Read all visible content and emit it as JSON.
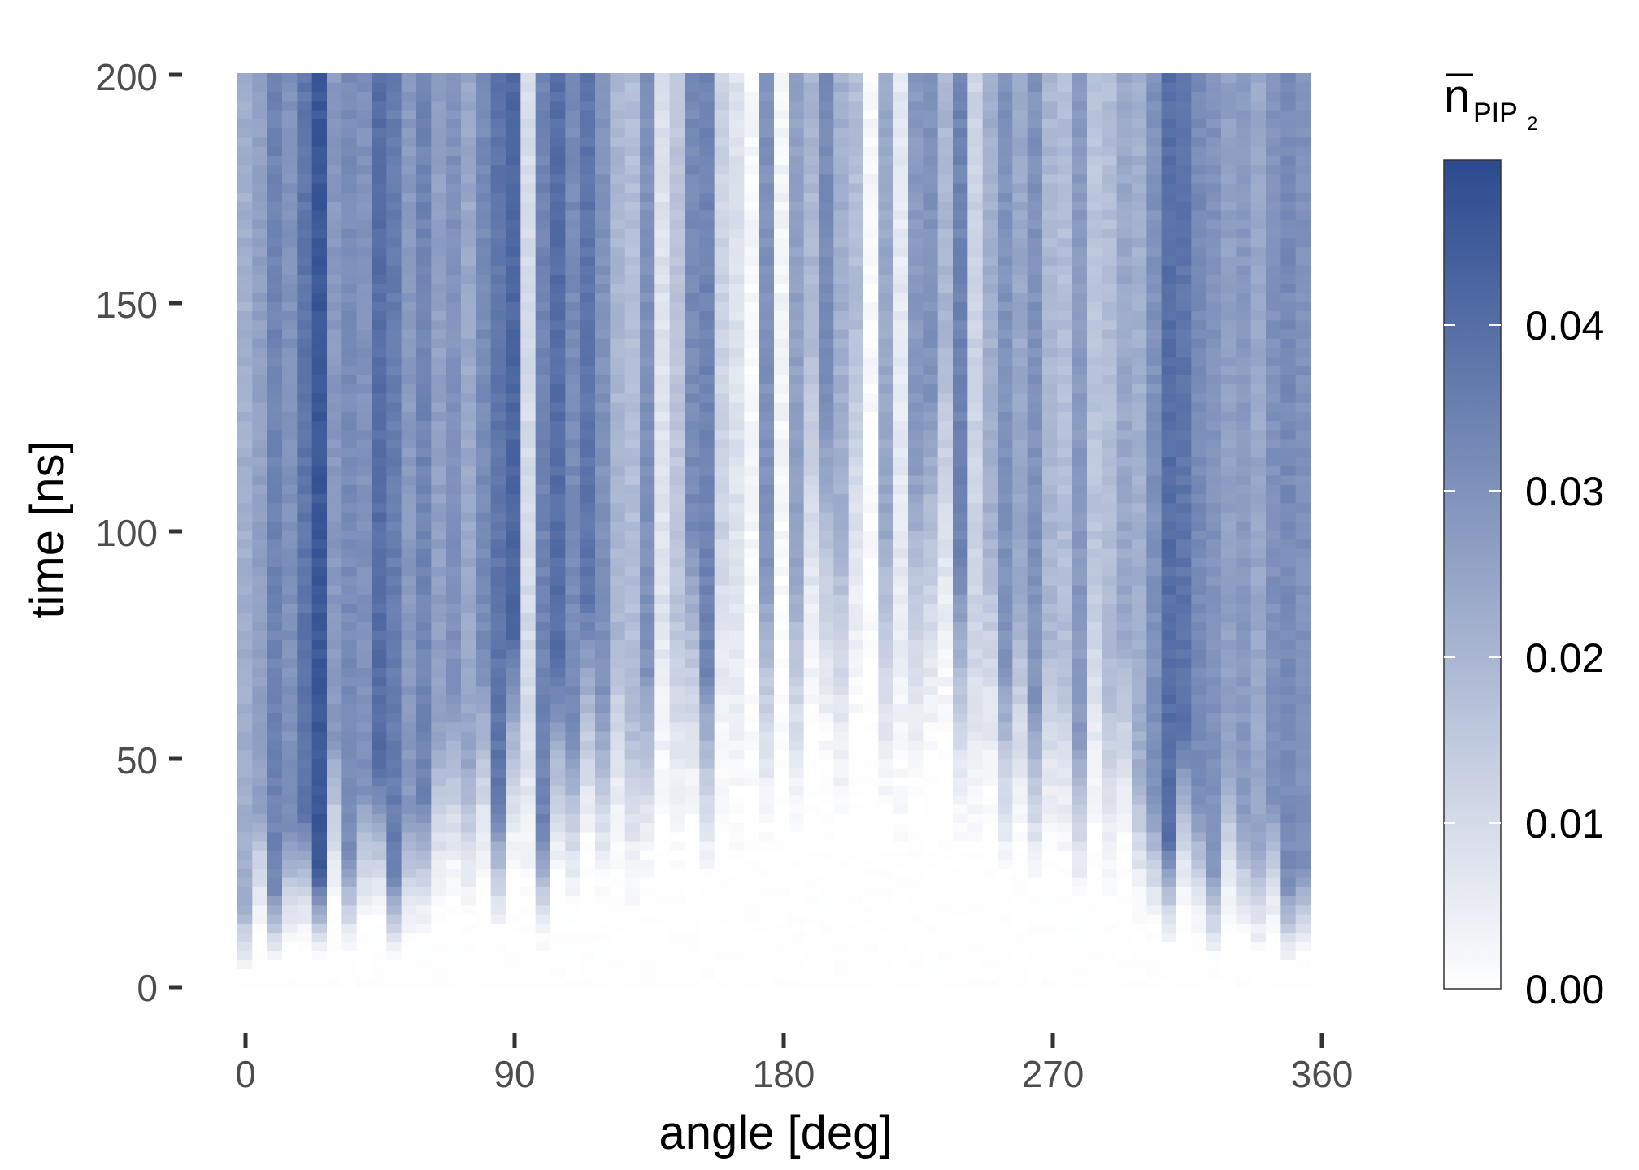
{
  "chart_data": {
    "type": "heatmap",
    "xlabel": "angle [deg]",
    "ylabel": "time [ns]",
    "xlim": [
      0,
      360
    ],
    "ylim": [
      0,
      200
    ],
    "x_ticks": [
      "0",
      "90",
      "180",
      "270",
      "360"
    ],
    "y_ticks": [
      "0",
      "50",
      "100",
      "150",
      "200"
    ],
    "grid": false,
    "colorbar": {
      "title_main": "n",
      "title_sub": "PIP",
      "title_subsub": "2",
      "overbar": true,
      "ticks": [
        "0.00",
        "0.01",
        "0.02",
        "0.03",
        "0.04"
      ],
      "range": [
        0,
        0.05
      ],
      "color_low": "#ffffff",
      "color_high": "#2b4a8f",
      "placement": "right"
    },
    "x_bins": {
      "start": 0,
      "end": 360,
      "count": 72
    },
    "y_bins": {
      "start": 0,
      "end": 200,
      "count": 100
    },
    "column_onset_ns": [
      5,
      20,
      8,
      15,
      18,
      10,
      30,
      12,
      22,
      25,
      10,
      18,
      20,
      30,
      35,
      25,
      40,
      20,
      45,
      30,
      15,
      40,
      30,
      50,
      35,
      45,
      30,
      40,
      50,
      45,
      60,
      40,
      60,
      50,
      65,
      55,
      80,
      55,
      90,
      80,
      60,
      90,
      100,
      60,
      50,
      70,
      80,
      90,
      55,
      45,
      60,
      40,
      50,
      35,
      45,
      40,
      30,
      55,
      35,
      45,
      25,
      20,
      15,
      30,
      20,
      10,
      25,
      18,
      12,
      20,
      8,
      10
    ],
    "column_plateau": [
      0.022,
      0.026,
      0.034,
      0.03,
      0.038,
      0.046,
      0.028,
      0.032,
      0.03,
      0.04,
      0.036,
      0.028,
      0.034,
      0.026,
      0.03,
      0.024,
      0.032,
      0.038,
      0.042,
      0.01,
      0.034,
      0.04,
      0.032,
      0.038,
      0.03,
      0.02,
      0.018,
      0.03,
      0.008,
      0.016,
      0.032,
      0.034,
      0.012,
      0.008,
      0.002,
      0.03,
      0.003,
      0.026,
      0.02,
      0.032,
      0.022,
      0.018,
      0.002,
      0.024,
      0.006,
      0.028,
      0.03,
      0.02,
      0.034,
      0.012,
      0.022,
      0.03,
      0.024,
      0.03,
      0.02,
      0.018,
      0.028,
      0.016,
      0.018,
      0.024,
      0.022,
      0.03,
      0.04,
      0.038,
      0.032,
      0.03,
      0.026,
      0.028,
      0.024,
      0.03,
      0.032,
      0.03
    ]
  }
}
